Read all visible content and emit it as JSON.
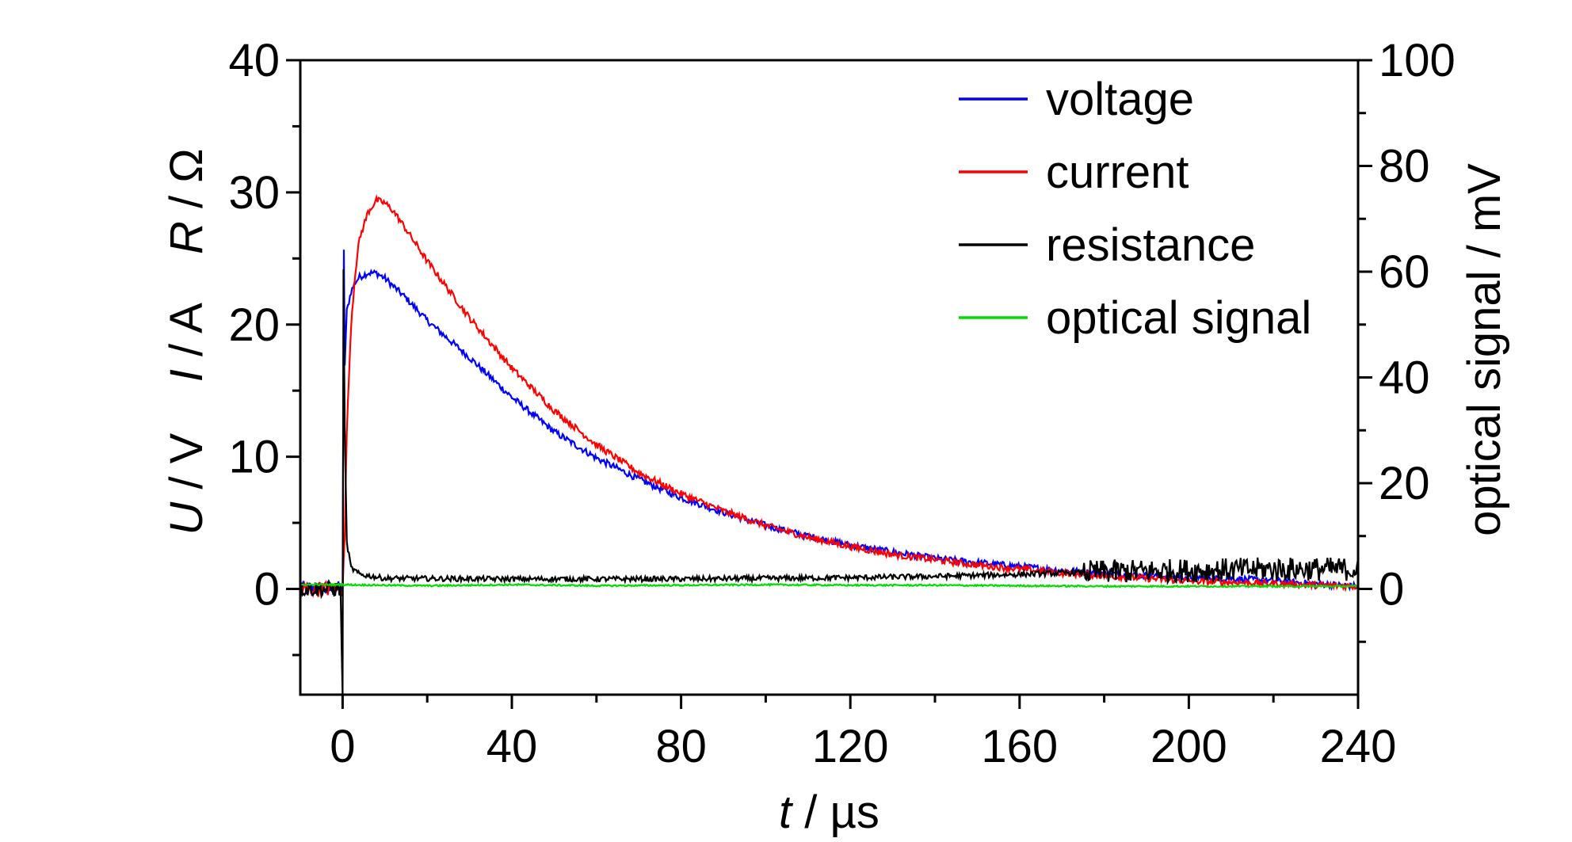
{
  "chart_data": {
    "type": "line",
    "x_axis": {
      "label_italic": "t",
      "label_rest": " / µs",
      "range": [
        -10,
        240
      ],
      "ticks": [
        "0",
        "40",
        "80",
        "120",
        "160",
        "200",
        "240"
      ],
      "tick_values": [
        0,
        40,
        80,
        120,
        160,
        200,
        240
      ],
      "minor_step": 20
    },
    "y_left": {
      "label_parts": [
        {
          "text": "U",
          "italic": true
        },
        {
          "text": " / V    ",
          "italic": false
        },
        {
          "text": "I",
          "italic": true
        },
        {
          "text": " / A    ",
          "italic": false
        },
        {
          "text": "R",
          "italic": true
        },
        {
          "text": " / Ω",
          "italic": false
        }
      ],
      "range": [
        -8,
        40
      ],
      "ticks": [
        "0",
        "10",
        "20",
        "30",
        "40"
      ],
      "tick_values": [
        0,
        10,
        20,
        30,
        40
      ],
      "minor_step": 5
    },
    "y_right": {
      "label": "optical signal / mV",
      "range": [
        -20,
        100
      ],
      "ticks": [
        "0",
        "20",
        "40",
        "60",
        "80",
        "100"
      ],
      "tick_values": [
        0,
        20,
        40,
        60,
        80,
        100
      ],
      "minor_step": 10
    },
    "legend": {
      "placement": "top-right",
      "entries": [
        {
          "name": "voltage",
          "color": "#0000ff"
        },
        {
          "name": "current",
          "color": "#ff0000"
        },
        {
          "name": "resistance",
          "color": "#000000"
        },
        {
          "name": "optical signal",
          "color": "#00dd00"
        }
      ]
    },
    "series": [
      {
        "name": "voltage",
        "color": "#0000ff",
        "axis": "left",
        "x": [
          -10,
          -0.5,
          0,
          0.3,
          0.5,
          1,
          2,
          3,
          4,
          6,
          8,
          10,
          15,
          20,
          30,
          40,
          50,
          60,
          70,
          80,
          90,
          100,
          110,
          120,
          130,
          140,
          150,
          160,
          170,
          180,
          190,
          200,
          210,
          220,
          230,
          240
        ],
        "y": [
          0,
          0,
          0,
          25.5,
          17,
          21,
          22.5,
          23.2,
          23.6,
          23.9,
          23.9,
          23.5,
          22,
          20.3,
          17.5,
          14.5,
          11.9,
          9.9,
          8.3,
          6.9,
          5.8,
          4.8,
          4.0,
          3.3,
          2.8,
          2.3,
          2.0,
          1.7,
          1.4,
          1.2,
          1.0,
          0.9,
          0.8,
          0.6,
          0.4,
          0.2
        ],
        "noise": 0.25
      },
      {
        "name": "current",
        "color": "#ff0000",
        "axis": "left",
        "x": [
          -10,
          -0.5,
          0,
          0.5,
          1,
          2,
          3,
          4,
          6,
          8,
          10,
          12,
          15,
          20,
          30,
          40,
          50,
          60,
          70,
          80,
          90,
          100,
          110,
          120,
          130,
          140,
          150,
          160,
          170,
          180,
          190,
          200,
          210,
          220,
          230,
          240
        ],
        "y": [
          0,
          0,
          0,
          4,
          12,
          20,
          24,
          26.5,
          28.5,
          29.4,
          29.2,
          28.6,
          27.2,
          24.8,
          20.5,
          16.7,
          13.5,
          10.9,
          8.8,
          7.2,
          5.9,
          4.8,
          3.9,
          3.2,
          2.6,
          2.2,
          1.8,
          1.5,
          1.2,
          1.0,
          0.8,
          0.6,
          0.5,
          0.4,
          0.3,
          0.2
        ],
        "noise": 0.25
      },
      {
        "name": "resistance",
        "color": "#000000",
        "axis": "left",
        "x": [
          -10,
          -0.5,
          0,
          0.2,
          0.5,
          1,
          2,
          4,
          10,
          40,
          80,
          120,
          140,
          160,
          180,
          200,
          220,
          240
        ],
        "y": [
          0,
          0,
          -8,
          24,
          12,
          3.5,
          1.6,
          1.1,
          0.8,
          0.75,
          0.75,
          0.85,
          0.95,
          1.1,
          1.3,
          1.4,
          1.5,
          1.5
        ],
        "noise": 0.2,
        "noisy_after": 175,
        "noise_late": 0.9
      },
      {
        "name": "optical signal",
        "color": "#00dd00",
        "axis": "right",
        "x": [
          -10,
          0,
          20,
          40,
          60,
          80,
          100,
          120,
          140,
          160,
          180,
          200,
          220,
          240
        ],
        "y": [
          0.8,
          0.8,
          0.6,
          0.8,
          0.6,
          0.7,
          0.8,
          0.7,
          0.7,
          0.6,
          0.5,
          0.5,
          0.5,
          0.5
        ],
        "noise": 0.15
      }
    ],
    "grid": false
  }
}
